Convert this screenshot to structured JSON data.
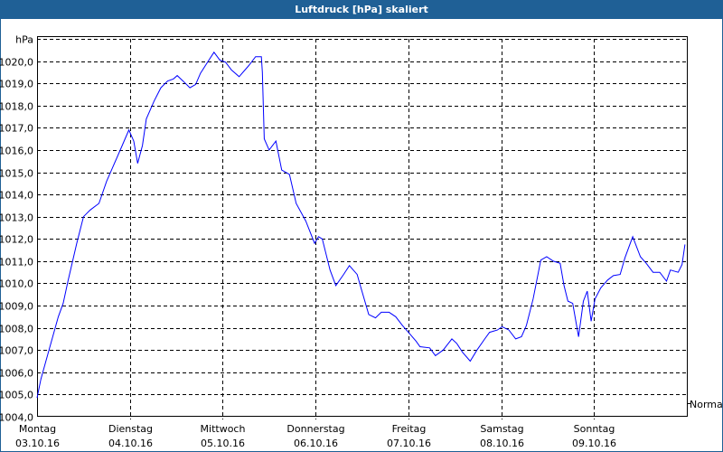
{
  "window": {
    "title": "Luftdruck [hPa] skaliert"
  },
  "chart_data": {
    "type": "line",
    "title": "Luftdruck [hPa] skaliert",
    "ylabel": "hPa",
    "ylim": [
      1004,
      1021
    ],
    "yticks": [
      1004,
      1005,
      1006,
      1007,
      1008,
      1009,
      1010,
      1011,
      1012,
      1013,
      1014,
      1015,
      1016,
      1017,
      1018,
      1019,
      1020
    ],
    "ytick_labels": [
      "1004,0",
      "1005,0",
      "1006,0",
      "1007,0",
      "1008,0",
      "1009,0",
      "1010,0",
      "1011,0",
      "1012,0",
      "1013,0",
      "1014,0",
      "1015,0",
      "1016,0",
      "1017,0",
      "1018,0",
      "1019,0",
      "1020,0"
    ],
    "xlim": [
      "2016-10-03T00:00",
      "2016-10-10T00:00"
    ],
    "xticks": [
      {
        "day": "Montag",
        "date": "03.10.16"
      },
      {
        "day": "Dienstag",
        "date": "04.10.16"
      },
      {
        "day": "Mittwoch",
        "date": "05.10.16"
      },
      {
        "day": "Donnerstag",
        "date": "06.10.16"
      },
      {
        "day": "Freitag",
        "date": "07.10.16"
      },
      {
        "day": "Samstag",
        "date": "08.10.16"
      },
      {
        "day": "Sonntag",
        "date": "09.10.16"
      }
    ],
    "grid": true,
    "reference_label": "Normal",
    "line_color": "#0000ff",
    "series": [
      {
        "points": [
          [
            "2016-10-03T00:00",
            1004.85
          ],
          [
            "2016-10-03T01:00",
            1005.7
          ],
          [
            "2016-10-03T03:15",
            1007.1
          ],
          [
            "2016-10-03T05:30",
            1008.5
          ],
          [
            "2016-10-03T06:45",
            1009.1
          ],
          [
            "2016-10-03T08:00",
            1010.1
          ],
          [
            "2016-10-03T10:15",
            1011.8
          ],
          [
            "2016-10-03T12:00",
            1013.0
          ],
          [
            "2016-10-03T13:45",
            1013.3
          ],
          [
            "2016-10-03T16:00",
            1013.6
          ],
          [
            "2016-10-03T18:00",
            1014.6
          ],
          [
            "2016-10-03T19:30",
            1015.2
          ],
          [
            "2016-10-03T22:00",
            1016.2
          ],
          [
            "2016-10-03T23:45",
            1016.9
          ],
          [
            "2016-10-04T01:00",
            1016.4
          ],
          [
            "2016-10-04T02:00",
            1015.4
          ],
          [
            "2016-10-04T03:15",
            1016.2
          ],
          [
            "2016-10-04T04:15",
            1017.4
          ],
          [
            "2016-10-04T06:15",
            1018.2
          ],
          [
            "2016-10-04T08:00",
            1018.8
          ],
          [
            "2016-10-04T09:45",
            1019.1
          ],
          [
            "2016-10-04T11:15",
            1019.2
          ],
          [
            "2016-10-04T12:15",
            1019.35
          ],
          [
            "2016-10-04T13:45",
            1019.1
          ],
          [
            "2016-10-04T15:30",
            1018.8
          ],
          [
            "2016-10-04T17:00",
            1018.95
          ],
          [
            "2016-10-04T18:15",
            1019.45
          ],
          [
            "2016-10-04T20:15",
            1020.0
          ],
          [
            "2016-10-04T21:45",
            1020.4
          ],
          [
            "2016-10-04T23:15",
            1020.05
          ],
          [
            "2016-10-05T00:45",
            1019.95
          ],
          [
            "2016-10-05T02:15",
            1019.6
          ],
          [
            "2016-10-05T04:15",
            1019.3
          ],
          [
            "2016-10-05T06:45",
            1019.8
          ],
          [
            "2016-10-05T08:30",
            1020.2
          ],
          [
            "2016-10-05T10:00",
            1020.2
          ],
          [
            "2016-10-05T10:15",
            1019.5
          ],
          [
            "2016-10-05T10:45",
            1016.5
          ],
          [
            "2016-10-05T12:00",
            1016.0
          ],
          [
            "2016-10-05T13:45",
            1016.4
          ],
          [
            "2016-10-05T15:15",
            1015.1
          ],
          [
            "2016-10-05T17:15",
            1014.9
          ],
          [
            "2016-10-05T19:00",
            1013.6
          ],
          [
            "2016-10-05T21:30",
            1012.8
          ],
          [
            "2016-10-05T23:45",
            1011.8
          ],
          [
            "2016-10-06T00:45",
            1012.1
          ],
          [
            "2016-10-06T01:45",
            1012.0
          ],
          [
            "2016-10-06T03:45",
            1010.6
          ],
          [
            "2016-10-06T05:15",
            1009.9
          ],
          [
            "2016-10-06T07:15",
            1010.4
          ],
          [
            "2016-10-06T08:45",
            1010.8
          ],
          [
            "2016-10-06T10:45",
            1010.4
          ],
          [
            "2016-10-06T11:45",
            1009.8
          ],
          [
            "2016-10-06T13:45",
            1008.6
          ],
          [
            "2016-10-06T15:30",
            1008.45
          ],
          [
            "2016-10-06T17:00",
            1008.7
          ],
          [
            "2016-10-06T19:00",
            1008.7
          ],
          [
            "2016-10-06T20:45",
            1008.5
          ],
          [
            "2016-10-06T22:30",
            1008.1
          ],
          [
            "2016-10-07T00:00",
            1007.8
          ],
          [
            "2016-10-07T02:00",
            1007.4
          ],
          [
            "2016-10-07T03:00",
            1007.15
          ],
          [
            "2016-10-07T05:30",
            1007.1
          ],
          [
            "2016-10-07T07:00",
            1006.75
          ],
          [
            "2016-10-07T09:00",
            1007.0
          ],
          [
            "2016-10-07T11:15",
            1007.5
          ],
          [
            "2016-10-07T12:30",
            1007.3
          ],
          [
            "2016-10-07T14:00",
            1006.9
          ],
          [
            "2016-10-07T16:00",
            1006.5
          ],
          [
            "2016-10-07T17:45",
            1007.0
          ],
          [
            "2016-10-07T19:45",
            1007.5
          ],
          [
            "2016-10-07T21:00",
            1007.8
          ],
          [
            "2016-10-07T23:00",
            1007.9
          ],
          [
            "2016-10-08T00:15",
            1008.05
          ],
          [
            "2016-10-08T02:00",
            1007.9
          ],
          [
            "2016-10-08T03:45",
            1007.5
          ],
          [
            "2016-10-08T05:15",
            1007.6
          ],
          [
            "2016-10-08T06:30",
            1008.1
          ],
          [
            "2016-10-08T08:15",
            1009.3
          ],
          [
            "2016-10-08T10:15",
            1011.05
          ],
          [
            "2016-10-08T11:45",
            1011.2
          ],
          [
            "2016-10-08T13:30",
            1011.0
          ],
          [
            "2016-10-08T15:15",
            1010.9
          ],
          [
            "2016-10-08T16:15",
            1009.9
          ],
          [
            "2016-10-08T17:15",
            1009.2
          ],
          [
            "2016-10-08T18:30",
            1009.1
          ],
          [
            "2016-10-08T20:00",
            1007.6
          ],
          [
            "2016-10-08T21:15",
            1009.2
          ],
          [
            "2016-10-08T22:15",
            1009.65
          ],
          [
            "2016-10-08T23:15",
            1008.3
          ],
          [
            "2016-10-09T00:15",
            1009.3
          ],
          [
            "2016-10-09T01:45",
            1009.8
          ],
          [
            "2016-10-09T03:30",
            1010.15
          ],
          [
            "2016-10-09T05:00",
            1010.35
          ],
          [
            "2016-10-09T06:45",
            1010.4
          ],
          [
            "2016-10-09T08:00",
            1011.15
          ],
          [
            "2016-10-09T10:00",
            1012.1
          ],
          [
            "2016-10-09T12:00",
            1011.2
          ],
          [
            "2016-10-09T13:30",
            1010.9
          ],
          [
            "2016-10-09T15:15",
            1010.5
          ],
          [
            "2016-10-09T17:00",
            1010.5
          ],
          [
            "2016-10-09T18:45",
            1010.1
          ],
          [
            "2016-10-09T19:45",
            1010.6
          ],
          [
            "2016-10-09T21:45",
            1010.5
          ],
          [
            "2016-10-09T22:45",
            1010.85
          ],
          [
            "2016-10-09T23:30",
            1011.75
          ]
        ]
      }
    ]
  }
}
